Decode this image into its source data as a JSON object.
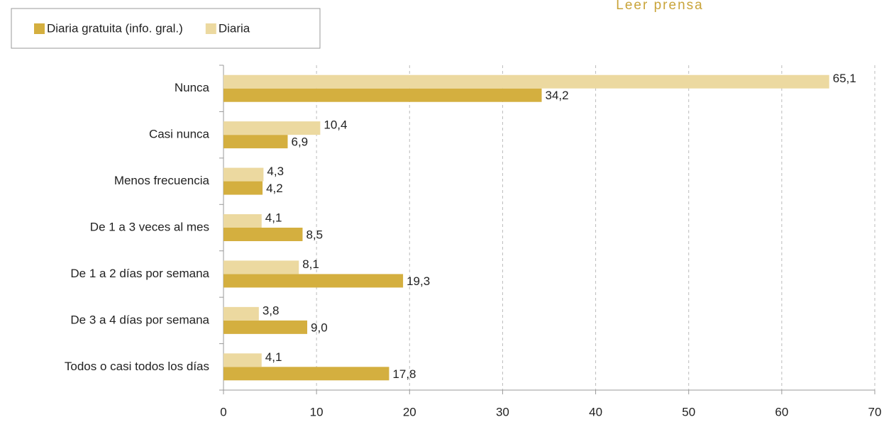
{
  "chart_data": {
    "type": "hbar",
    "title": "Leer prensa",
    "categories": [
      "Nunca",
      "Casi nunca",
      "Menos frecuencia",
      "De 1 a 3 veces al mes",
      "De 1 a 2 días por semana",
      "De 3 a 4 días por semana",
      "Todos o casi todos los días"
    ],
    "series": [
      {
        "name": "Diaria gratuita (info. gral.)",
        "color": "#d4af3f",
        "values": [
          34.2,
          6.9,
          4.2,
          8.5,
          19.3,
          9.0,
          17.8
        ],
        "value_labels": [
          "34,2",
          "6,9",
          "4,2",
          "8,5",
          "19,3",
          "9,0",
          "17,8"
        ]
      },
      {
        "name": "Diaria",
        "color": "#ecd9a0",
        "values": [
          65.1,
          10.4,
          4.3,
          4.1,
          8.1,
          3.8,
          4.1
        ],
        "value_labels": [
          "65,1",
          "10,4",
          "4,3",
          "4,1",
          "8,1",
          "3,8",
          "4,1"
        ]
      }
    ],
    "xlim": [
      0,
      70
    ],
    "xticks": [
      0,
      10,
      20,
      30,
      40,
      50,
      60,
      70
    ],
    "grid": true,
    "legend": "top-left"
  }
}
